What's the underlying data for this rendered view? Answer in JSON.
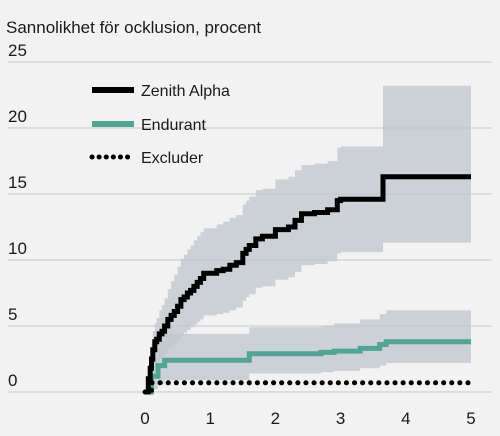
{
  "chart_data": {
    "type": "line",
    "title": "Sannolikhet för ocklusion, procent",
    "xlabel": "",
    "ylabel": "",
    "xlim": [
      0,
      5.1
    ],
    "ylim": [
      0,
      25
    ],
    "x_ticks": [
      0,
      1,
      2,
      3,
      4,
      5
    ],
    "y_ticks": [
      0,
      5,
      10,
      15,
      20,
      25
    ],
    "grid": "horizontal",
    "legend_position": "top-left",
    "series": [
      {
        "name": "Zenith Alpha",
        "color": "#000000",
        "style": "solid",
        "step": true,
        "x": [
          0,
          0.05,
          0.08,
          0.1,
          0.12,
          0.15,
          0.18,
          0.22,
          0.26,
          0.3,
          0.35,
          0.4,
          0.45,
          0.5,
          0.55,
          0.6,
          0.65,
          0.7,
          0.75,
          0.8,
          0.85,
          0.9,
          1.0,
          1.1,
          1.2,
          1.3,
          1.4,
          1.5,
          1.55,
          1.6,
          1.7,
          1.8,
          2.0,
          2.2,
          2.3,
          2.4,
          2.6,
          2.8,
          2.95,
          3.0,
          3.3,
          3.65,
          5.0
        ],
        "y": [
          0,
          1.0,
          1.8,
          2.5,
          3.2,
          3.8,
          4.0,
          4.4,
          4.6,
          5.0,
          5.5,
          5.8,
          6.1,
          6.5,
          7.0,
          7.2,
          7.5,
          7.7,
          8.0,
          8.3,
          8.6,
          9.0,
          9.0,
          9.2,
          9.3,
          9.6,
          9.8,
          10.5,
          10.8,
          11.1,
          11.6,
          11.8,
          12.3,
          12.5,
          13.0,
          13.5,
          13.6,
          13.8,
          14.5,
          14.6,
          14.6,
          16.3,
          16.3
        ],
        "ci_upper": [
          0,
          1.5,
          2.6,
          3.7,
          4.6,
          5.2,
          5.6,
          6.2,
          6.6,
          7.1,
          7.8,
          8.4,
          8.9,
          9.5,
          10.1,
          10.4,
          10.8,
          11.1,
          11.5,
          11.8,
          12.1,
          12.4,
          12.4,
          12.7,
          12.9,
          13.2,
          13.4,
          14.2,
          14.5,
          14.8,
          15.3,
          15.4,
          16.1,
          16.3,
          16.8,
          17.2,
          17.3,
          17.5,
          18.5,
          18.6,
          18.6,
          23.2,
          23.2
        ],
        "ci_lower": [
          0,
          0.3,
          0.8,
          1.2,
          1.6,
          2.0,
          2.3,
          2.6,
          2.7,
          2.9,
          3.3,
          3.5,
          3.7,
          4.0,
          4.3,
          4.5,
          4.7,
          4.9,
          5.1,
          5.3,
          5.5,
          5.8,
          5.8,
          5.9,
          6.0,
          6.2,
          6.4,
          6.9,
          7.2,
          7.4,
          7.9,
          8.0,
          8.5,
          8.7,
          9.1,
          9.6,
          9.7,
          9.9,
          10.5,
          10.6,
          10.6,
          11.3,
          11.3
        ]
      },
      {
        "name": "Endurant",
        "color": "#4fa596",
        "style": "solid",
        "step": true,
        "x": [
          0,
          0.1,
          0.2,
          0.3,
          1.6,
          2.7,
          2.9,
          3.3,
          3.6,
          3.7,
          5.0
        ],
        "y": [
          0,
          1.2,
          2.0,
          2.4,
          2.9,
          3.0,
          3.1,
          3.3,
          3.6,
          3.8,
          3.8
        ],
        "ci_upper": [
          0,
          2.6,
          3.9,
          4.4,
          4.9,
          5.0,
          5.2,
          5.5,
          5.9,
          6.2,
          6.2
        ],
        "ci_lower": [
          0,
          0.2,
          0.6,
          0.9,
          1.4,
          1.5,
          1.6,
          1.8,
          2.0,
          2.2,
          2.2
        ]
      },
      {
        "name": "Excluder",
        "color": "#000000",
        "style": "dotted",
        "step": true,
        "x": [
          0,
          0.1,
          0.2,
          5.0
        ],
        "y": [
          0,
          0.7,
          0.7,
          0.7
        ]
      }
    ]
  }
}
